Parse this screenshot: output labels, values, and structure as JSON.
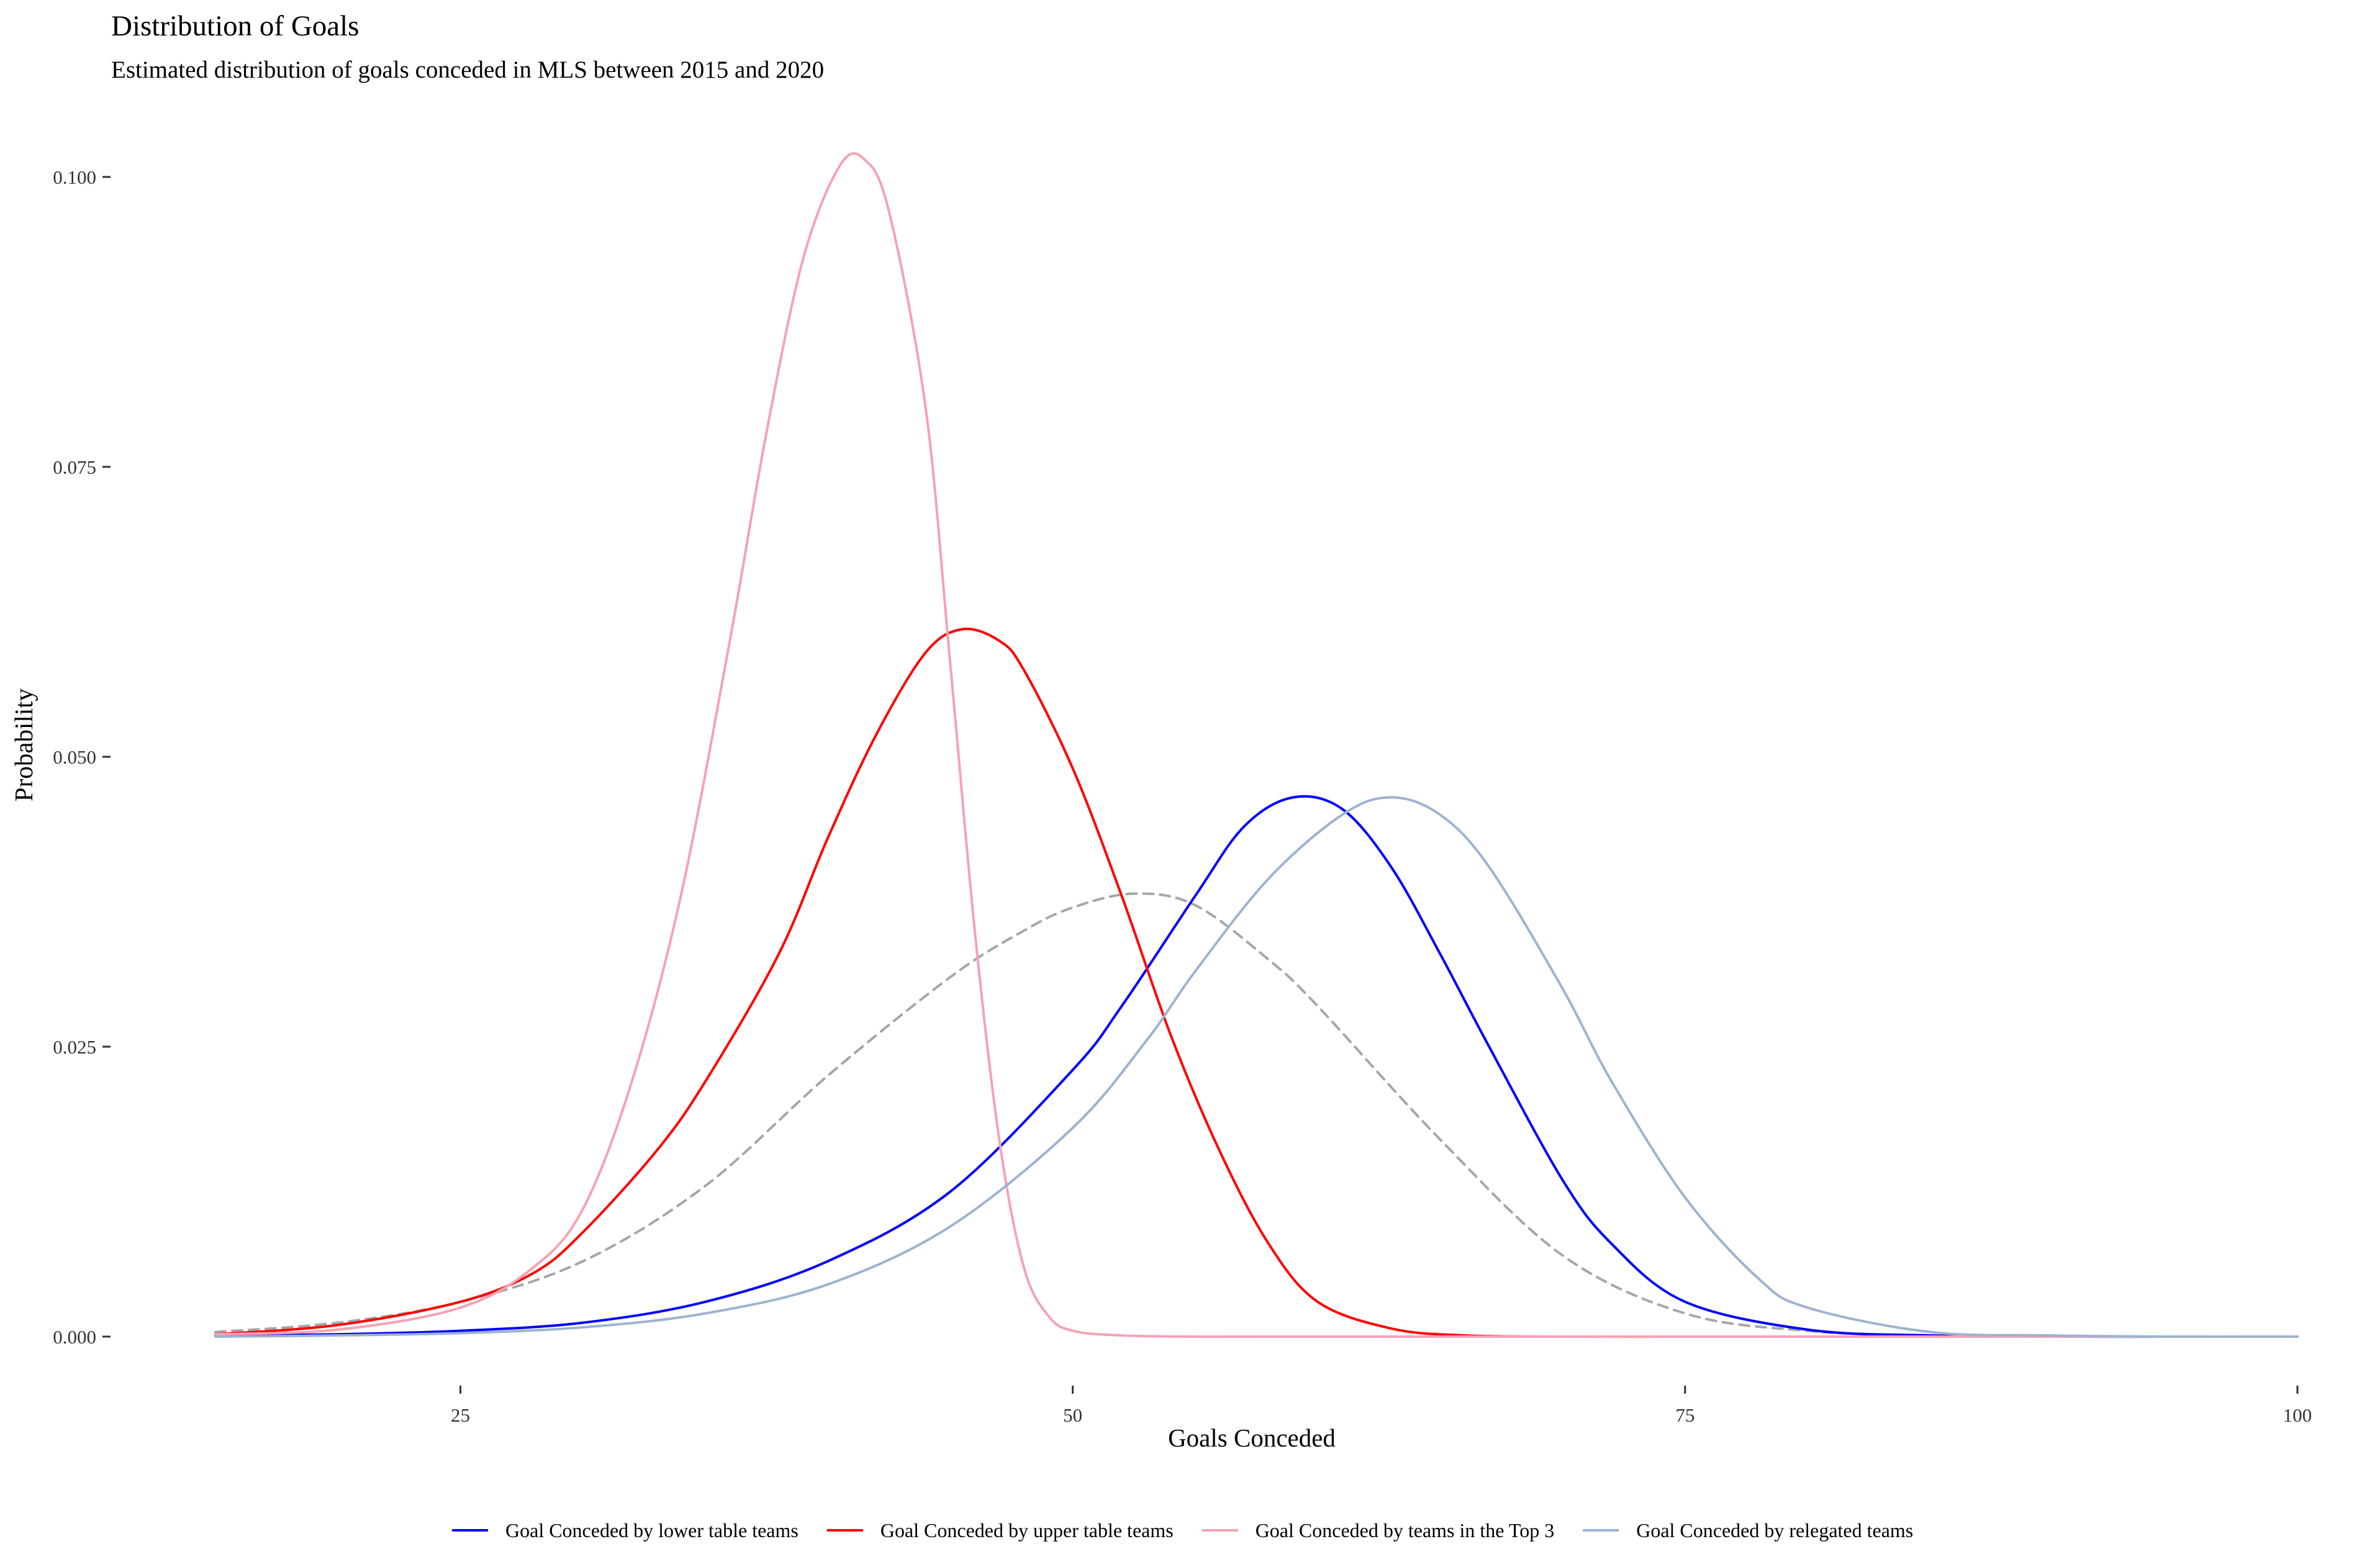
{
  "chart_data": {
    "type": "line",
    "title": "Distribution of Goals",
    "subtitle": "Estimated distribution of goals conceded in MLS between 2015 and 2020",
    "xlabel": "Goals Conceded",
    "ylabel": "Probability",
    "xlim": [
      15,
      100
    ],
    "ylim": [
      0,
      0.1
    ],
    "x_ticks": [
      25,
      50,
      75,
      100
    ],
    "y_ticks": [
      0,
      0.025,
      0.05,
      0.075,
      0.1
    ],
    "x_tick_labels": [
      "25",
      "50",
      "75",
      "100"
    ],
    "y_tick_labels": [
      "0.000",
      "0.025",
      "0.050",
      "0.075",
      "0.100"
    ],
    "grid": false,
    "legend_position": "bottom",
    "series": [
      {
        "name": "Goal Conceded by lower table teams",
        "color": "#0000ff",
        "dash": "solid",
        "in_legend": true,
        "x": [
          15,
          20,
          25,
          30,
          35,
          40,
          45,
          50,
          52,
          55,
          57,
          59,
          61,
          63,
          65,
          67,
          70,
          72,
          75,
          80,
          85,
          90,
          95,
          100
        ],
        "y": [
          0.0001,
          0.0002,
          0.0005,
          0.0012,
          0.003,
          0.0065,
          0.0125,
          0.023,
          0.0285,
          0.038,
          0.044,
          0.0465,
          0.0455,
          0.0405,
          0.033,
          0.025,
          0.0135,
          0.008,
          0.003,
          0.0006,
          0.0001,
          0.0,
          0.0,
          0.0
        ]
      },
      {
        "name": "Goal Conceded by upper table teams",
        "color": "#ff0000",
        "dash": "solid",
        "in_legend": true,
        "x": [
          15,
          20,
          25,
          28,
          30,
          33,
          35,
          38,
          40,
          42,
          44,
          45.5,
          47,
          48,
          50,
          52,
          54,
          56,
          58,
          60,
          63,
          66,
          70,
          75,
          80,
          90,
          100
        ],
        "y": [
          0.0002,
          0.001,
          0.003,
          0.0055,
          0.009,
          0.016,
          0.022,
          0.033,
          0.043,
          0.052,
          0.059,
          0.061,
          0.06,
          0.0575,
          0.049,
          0.038,
          0.026,
          0.016,
          0.008,
          0.003,
          0.0007,
          0.0001,
          0.0,
          0.0,
          0.0,
          0.0,
          0.0
        ]
      },
      {
        "name": "Goal Conceded by teams in the Top 3",
        "color": "#f5a2b5",
        "dash": "solid",
        "in_legend": true,
        "x": [
          15,
          20,
          25,
          28,
          30,
          32,
          34,
          36,
          37.5,
          39,
          40.5,
          41.5,
          42.5,
          44,
          45,
          46,
          47,
          48,
          49,
          50,
          52,
          55,
          60,
          70,
          80,
          90,
          100
        ],
        "y": [
          0.0002,
          0.0006,
          0.0025,
          0.006,
          0.011,
          0.022,
          0.038,
          0.06,
          0.078,
          0.093,
          0.101,
          0.1015,
          0.097,
          0.08,
          0.058,
          0.035,
          0.017,
          0.006,
          0.0018,
          0.0005,
          0.0001,
          0.0,
          0.0,
          0.0,
          0.0,
          0.0,
          0.0
        ]
      },
      {
        "name": "Goal Conceded by relegated teams",
        "color": "#9db3d0",
        "dash": "solid",
        "in_legend": true,
        "x": [
          15,
          20,
          25,
          30,
          35,
          40,
          45,
          50,
          53,
          55,
          58,
          61,
          63,
          65,
          67,
          70,
          72,
          75,
          78,
          80,
          85,
          90,
          95,
          100
        ],
        "y": [
          0.0,
          0.0001,
          0.0003,
          0.0008,
          0.002,
          0.0045,
          0.0095,
          0.018,
          0.0255,
          0.0315,
          0.0395,
          0.045,
          0.0465,
          0.045,
          0.0405,
          0.03,
          0.022,
          0.012,
          0.005,
          0.0025,
          0.0004,
          0.0001,
          0.0,
          0.0
        ]
      },
      {
        "name": "",
        "color": "#a6a6a6",
        "dash": "dashed",
        "in_legend": false,
        "x": [
          15,
          20,
          25,
          30,
          35,
          40,
          45,
          48,
          50,
          52.5,
          55,
          58,
          60,
          65,
          70,
          75,
          80,
          85,
          90,
          95,
          100
        ],
        "y": [
          0.0004,
          0.0012,
          0.003,
          0.0065,
          0.013,
          0.0225,
          0.031,
          0.035,
          0.037,
          0.0382,
          0.0372,
          0.0325,
          0.0285,
          0.017,
          0.007,
          0.002,
          0.0005,
          0.0001,
          0.0,
          0.0,
          0.0
        ]
      }
    ]
  }
}
